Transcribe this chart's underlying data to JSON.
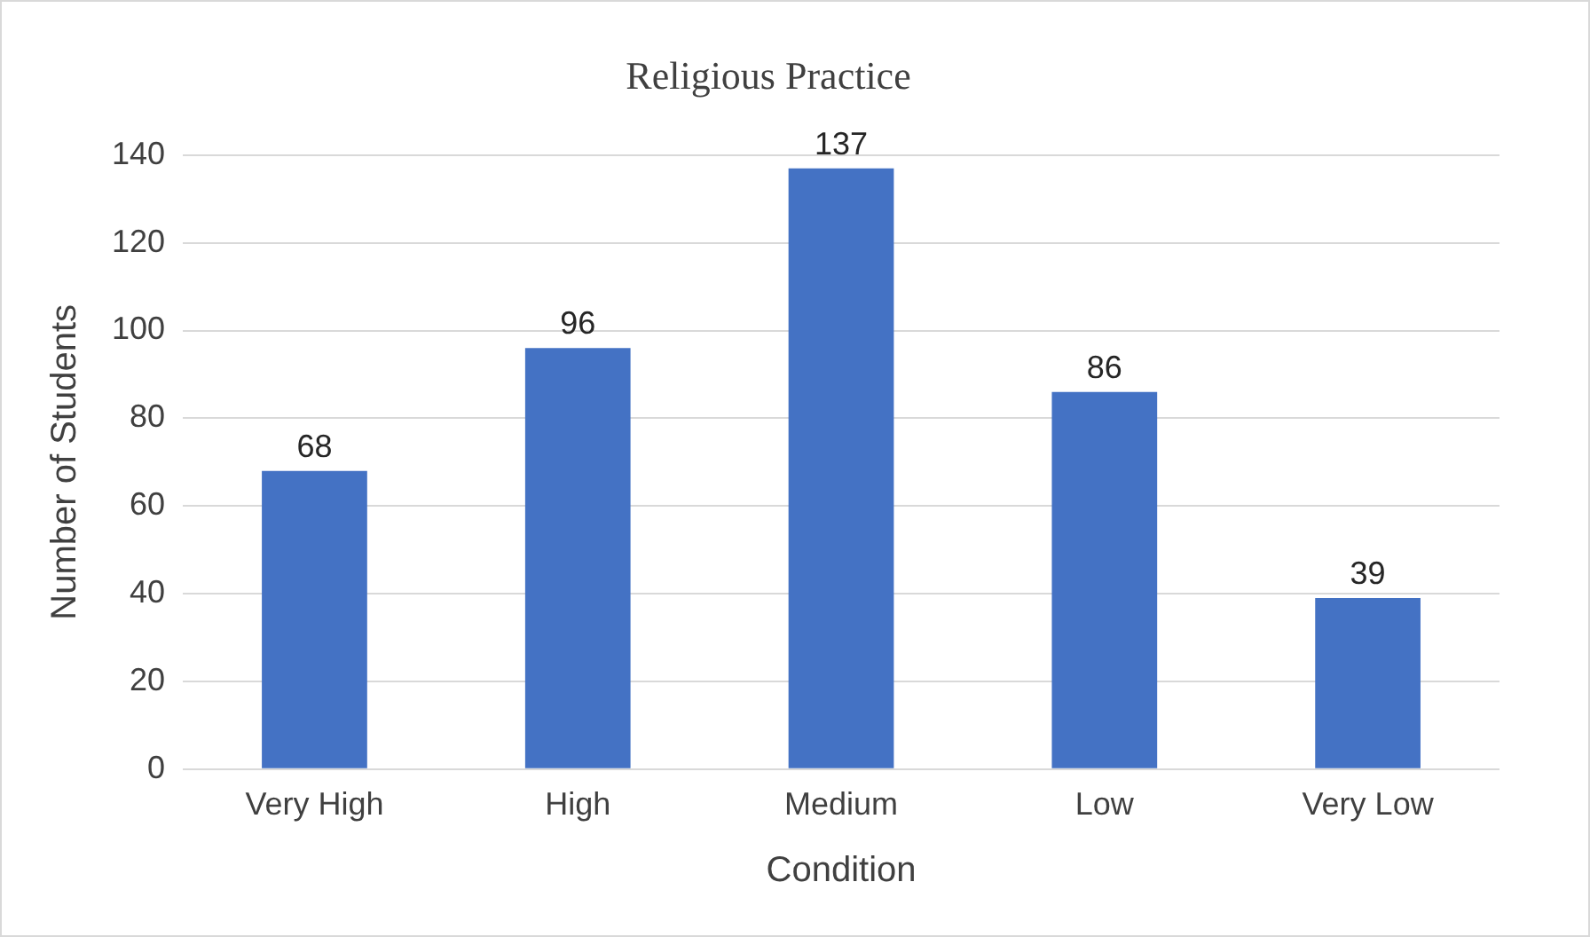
{
  "chart_data": {
    "type": "bar",
    "title": "Religious Practice",
    "xlabel": "Condition",
    "ylabel": "Number of Students",
    "categories": [
      "Very High",
      "High",
      "Medium",
      "Low",
      "Very Low"
    ],
    "values": [
      68,
      96,
      137,
      86,
      39
    ],
    "color": "#4472c4",
    "ylim": [
      0,
      140
    ],
    "yticks": [
      0,
      20,
      40,
      60,
      80,
      100,
      120,
      140
    ],
    "grid": "y",
    "data_labels": true
  }
}
